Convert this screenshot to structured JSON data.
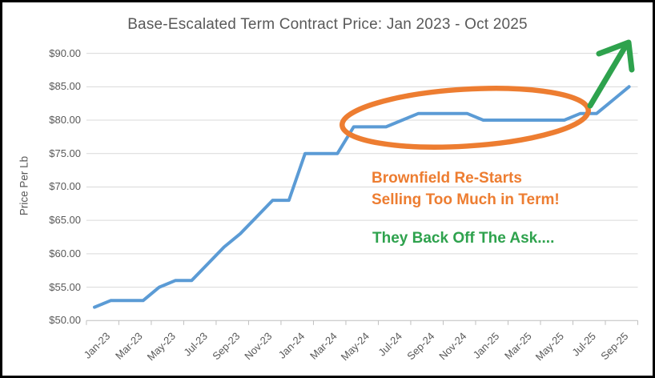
{
  "chart": {
    "title": "Base-Escalated Term Contract Price: Jan 2023 - Oct 2025",
    "y_axis": {
      "label": "Price Per Lb",
      "tick_labels": [
        "$90.00",
        "$85.00",
        "$80.00",
        "$75.00",
        "$70.00",
        "$65.00",
        "$60.00",
        "$55.00",
        "$50.00"
      ]
    },
    "x_axis": {
      "tick_labels": [
        "Jan-23",
        "Mar-23",
        "May-23",
        "Jul-23",
        "Sep-23",
        "Nov-23",
        "Jan-24",
        "Mar-24",
        "May-24",
        "Jul-24",
        "Sep-24",
        "Nov-24",
        "Jan-25",
        "Mar-25",
        "May-25",
        "Jul-25",
        "Sep-25"
      ],
      "label_interval_months": 2
    }
  },
  "chart_data": {
    "type": "line",
    "title": "Base-Escalated Term Contract Price: Jan 2023 - Oct 2025",
    "xlabel": "",
    "ylabel": "Price Per Lb",
    "ylim": [
      50,
      90
    ],
    "y_tick_step": 5,
    "grid": "horizontal",
    "legend": "none",
    "x": [
      "Jan-23",
      "Feb-23",
      "Mar-23",
      "Apr-23",
      "May-23",
      "Jun-23",
      "Jul-23",
      "Aug-23",
      "Sep-23",
      "Oct-23",
      "Nov-23",
      "Dec-23",
      "Jan-24",
      "Feb-24",
      "Mar-24",
      "Apr-24",
      "May-24",
      "Jun-24",
      "Jul-24",
      "Aug-24",
      "Sep-24",
      "Oct-24",
      "Nov-24",
      "Dec-24",
      "Jan-25",
      "Feb-25",
      "Mar-25",
      "Apr-25",
      "May-25",
      "Jun-25",
      "Jul-25",
      "Aug-25",
      "Sep-25",
      "Oct-25"
    ],
    "values": [
      52,
      53,
      53,
      53,
      55,
      56,
      56,
      58.5,
      61,
      63,
      65.5,
      68,
      68,
      75,
      75,
      75,
      79,
      79,
      79,
      80,
      81,
      81,
      81,
      81,
      80,
      80,
      80,
      80,
      80,
      80,
      81,
      81,
      83,
      85
    ]
  },
  "annotations": {
    "orange_note": {
      "line1": "Brownfield Re-Starts",
      "line2": "Selling Too Much in Term!",
      "color": "#ED7D31"
    },
    "green_note": {
      "text": "They Back Off The Ask....",
      "color": "#2EA24D"
    },
    "ellipse_highlight": {
      "meaning": "circles the $80-$81 price plateau",
      "color": "#ED7D31"
    },
    "up_arrow": {
      "meaning": "price rising at end of series",
      "color": "#2EA24D"
    }
  },
  "colors": {
    "series_line": "#5B9BD5",
    "gridline": "#D9D9D9",
    "axis_line": "#BFBFBF",
    "axis_text": "#595959",
    "title_text": "#595959"
  }
}
